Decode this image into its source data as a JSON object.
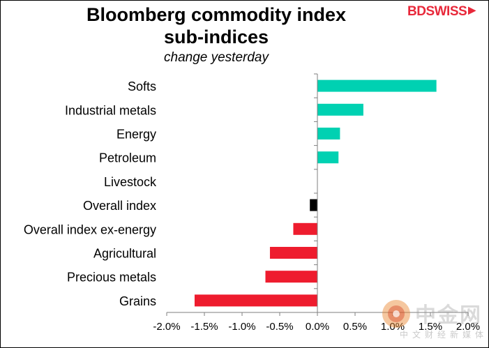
{
  "chart_data": {
    "type": "bar",
    "orientation": "horizontal",
    "title_line1": "Bloomberg commodity index",
    "title_line2": "sub-indices",
    "subtitle": "change yesterday",
    "categories": [
      "Softs",
      "Industrial metals",
      "Energy",
      "Petroleum",
      "Livestock",
      "Overall index",
      "Overall index ex-energy",
      "Agricultural",
      "Precious metals",
      "Grains"
    ],
    "values": [
      1.58,
      0.61,
      0.3,
      0.28,
      0.0,
      -0.1,
      -0.32,
      -0.63,
      -0.69,
      -1.63
    ],
    "xlim": [
      -2.0,
      2.0
    ],
    "xticks": [
      -2.0,
      -1.5,
      -1.0,
      -0.5,
      0.0,
      0.5,
      1.0,
      1.5,
      2.0
    ],
    "xtick_labels": [
      "-2.0%",
      "-1.5%",
      "-1.0%",
      "-0.5%",
      "0.0%",
      "0.5%",
      "1.0%",
      "1.5%",
      "2.0%"
    ],
    "colors": {
      "positive": "#00d1b2",
      "negative": "#ee1c2e",
      "overall": "#000000",
      "axis": "#7f7f7f"
    },
    "overall_category": "Overall index"
  },
  "logo": {
    "bd": "BD",
    "swiss": "SWISS",
    "arrow": "▶"
  },
  "watermark": {
    "title": "中金网",
    "subtitle": "中文财经新媒体"
  }
}
